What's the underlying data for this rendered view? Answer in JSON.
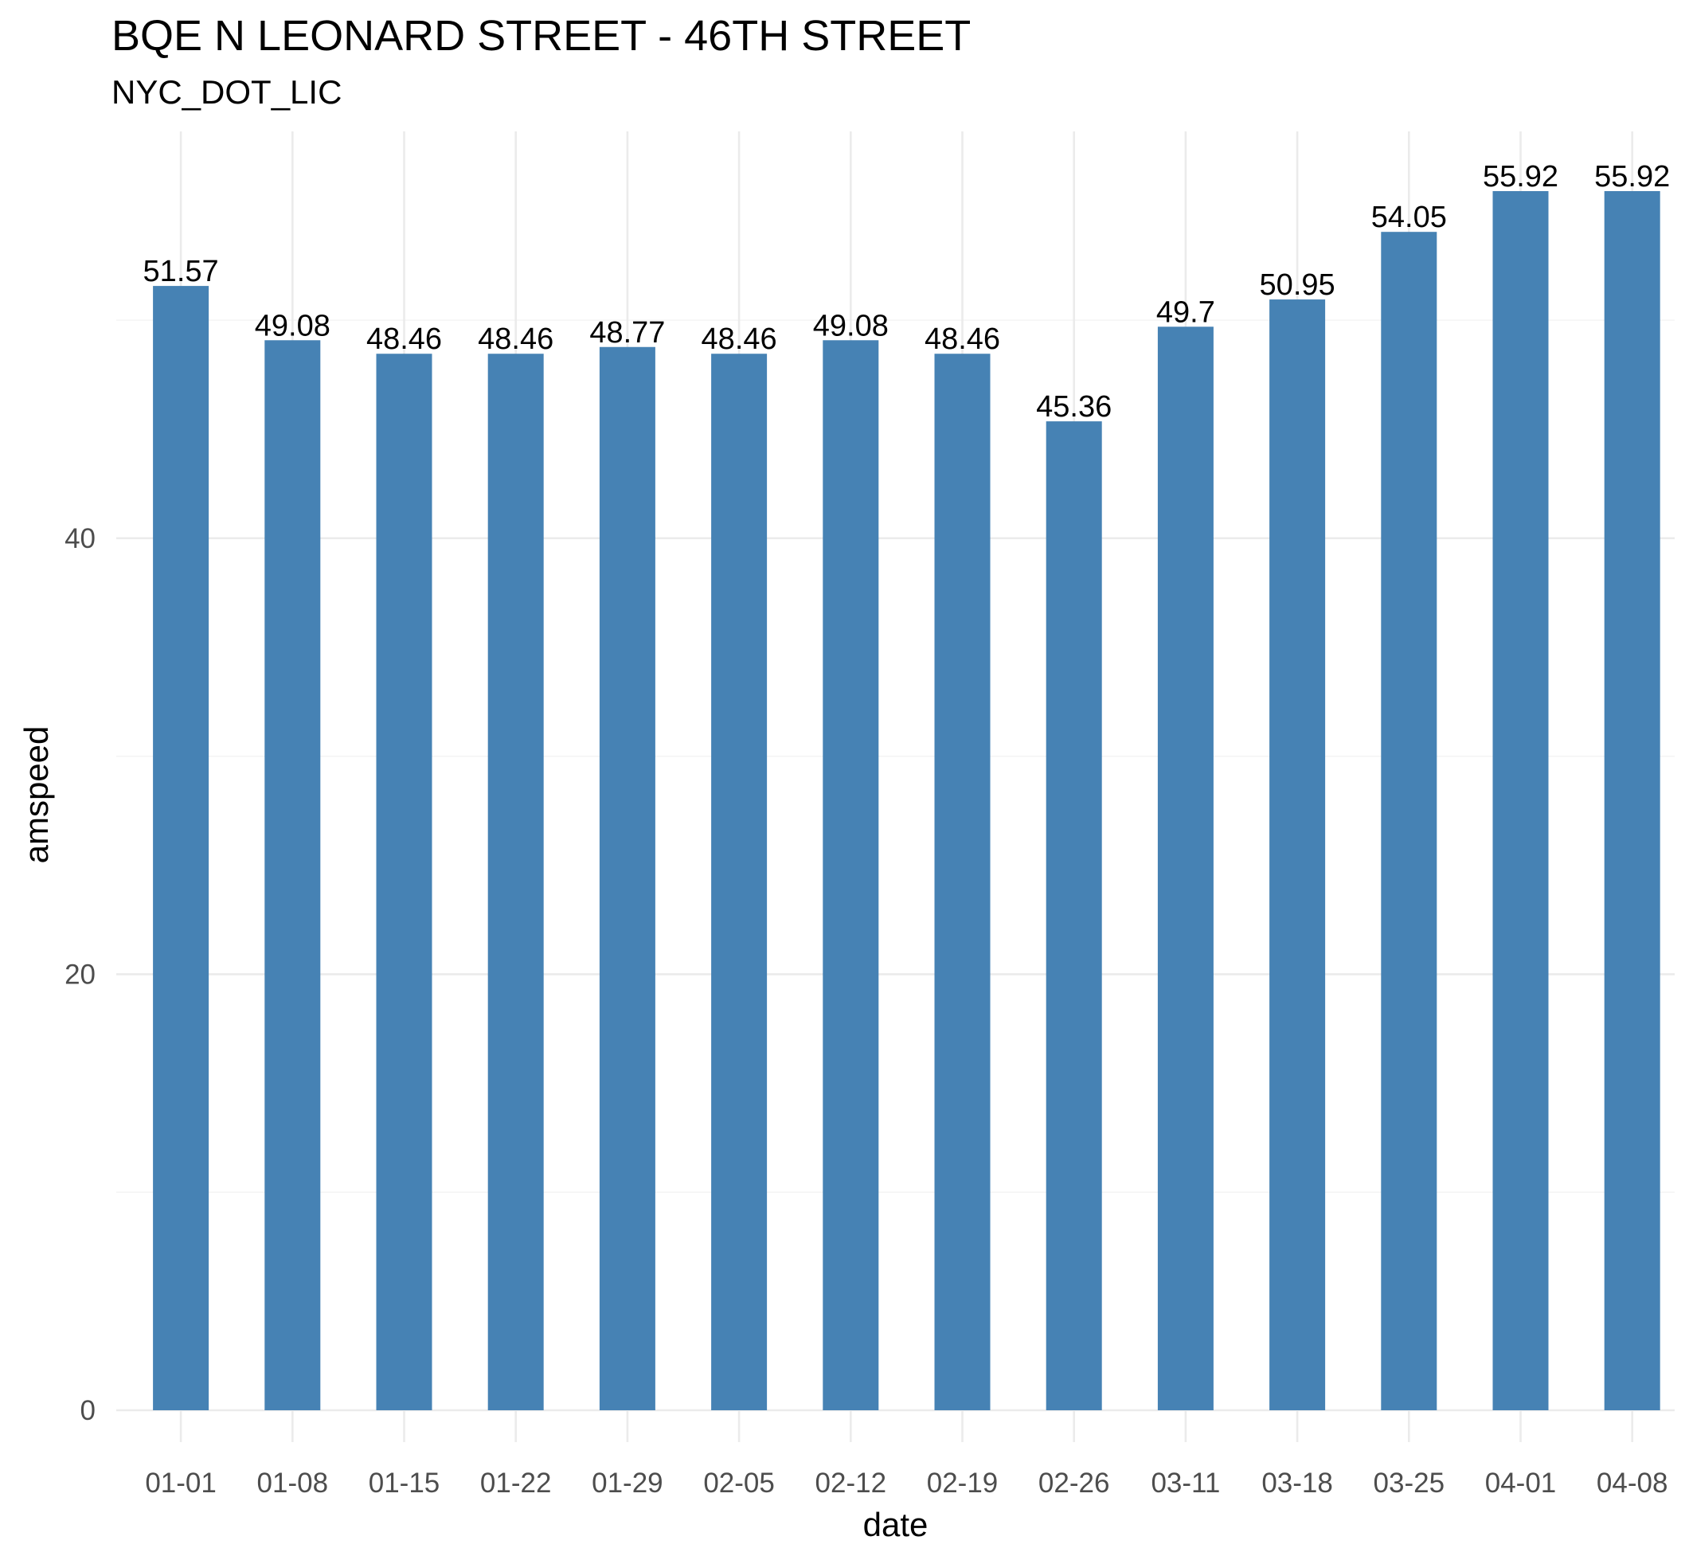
{
  "colors": {
    "bar": "#4682b4",
    "background": "#ffffff"
  },
  "chart_data": {
    "type": "bar",
    "title": "BQE N LEONARD STREET - 46TH STREET",
    "subtitle": "NYC_DOT_LIC",
    "xlabel": "date",
    "ylabel": "amspeed",
    "categories": [
      "01-01",
      "01-08",
      "01-15",
      "01-22",
      "01-29",
      "02-05",
      "02-12",
      "02-19",
      "02-26",
      "03-11",
      "03-18",
      "03-25",
      "04-01",
      "04-08"
    ],
    "values": [
      51.57,
      49.08,
      48.46,
      48.46,
      48.77,
      48.46,
      49.08,
      48.46,
      45.36,
      49.7,
      50.95,
      54.05,
      55.92,
      55.92
    ],
    "data_labels": [
      "51.57",
      "49.08",
      "48.46",
      "48.46",
      "48.77",
      "48.46",
      "49.08",
      "48.46",
      "45.36",
      "49.7",
      "50.95",
      "54.05",
      "55.92",
      "55.92"
    ],
    "yticks": [
      0,
      20,
      40
    ],
    "ytick_labels": [
      "0",
      "20",
      "40"
    ],
    "ylim": [
      0,
      55.92
    ],
    "grid": true,
    "legend": "none"
  }
}
